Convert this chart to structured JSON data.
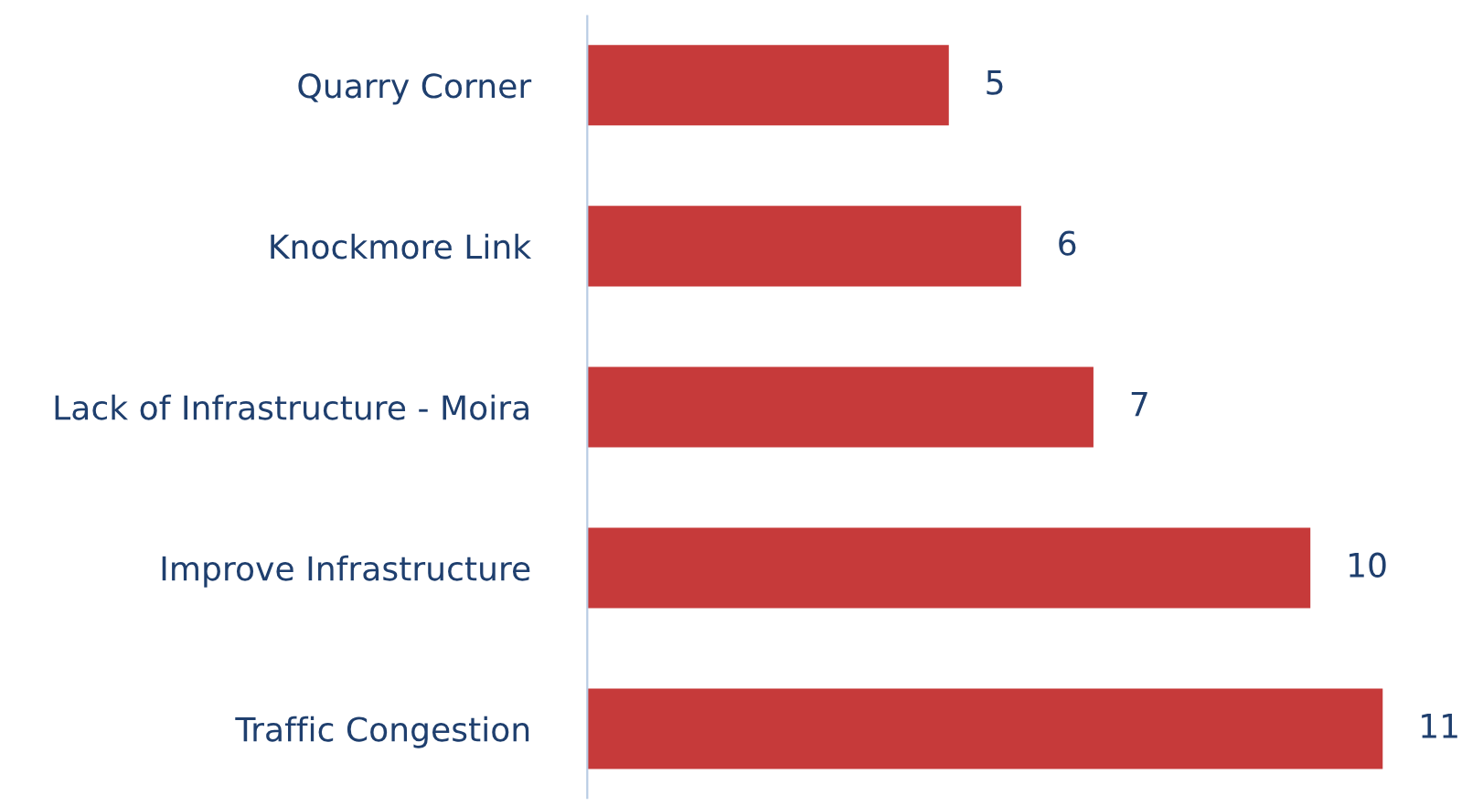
{
  "chart_data": {
    "type": "bar",
    "orientation": "horizontal",
    "categories": [
      "Quarry Corner",
      "Knockmore Link",
      "Lack of Infrastructure - Moira",
      "Improve Infrastructure",
      "Traffic Congestion"
    ],
    "values": [
      5,
      6,
      7,
      10,
      11
    ],
    "color": "#c63a3a",
    "data_labels": true,
    "grid": false,
    "legend": false
  }
}
